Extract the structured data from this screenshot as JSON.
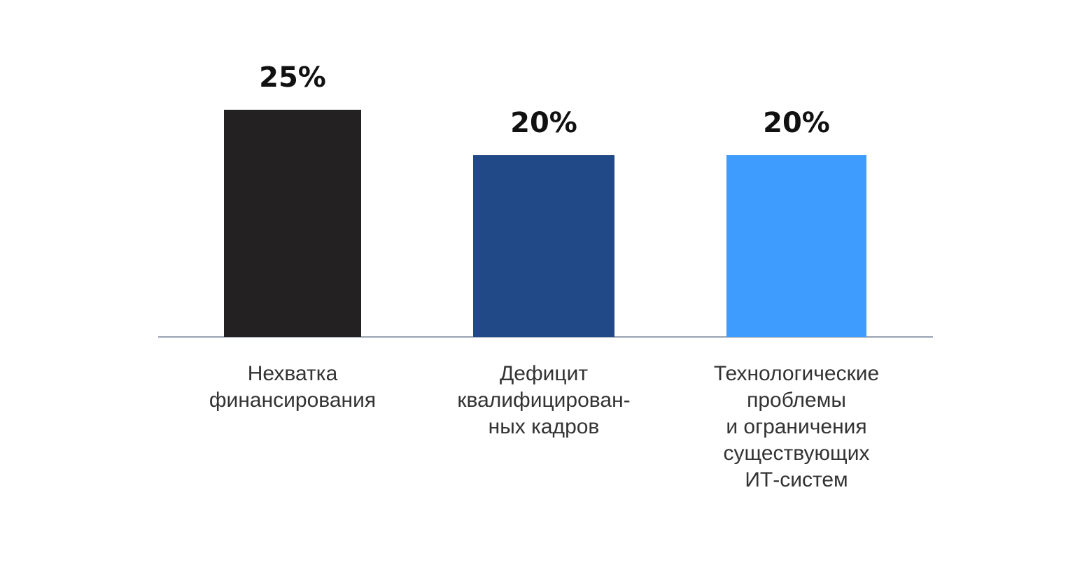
{
  "chart_data": {
    "type": "bar",
    "categories": [
      [
        "Нехватка",
        "финансирования"
      ],
      [
        "Дефицит",
        "квалифицирован-",
        "ных кадров"
      ],
      [
        "Технологические",
        "проблемы",
        "и ограничения",
        "существующих",
        "ИТ-систем"
      ]
    ],
    "values": [
      25,
      20,
      20
    ],
    "value_labels": [
      "25%",
      "20%",
      "20%"
    ],
    "colors": [
      "#242122",
      "#214887",
      "#3e9cff"
    ],
    "axis_color": "#9aa3b2",
    "grid": false,
    "legend": "none",
    "ylim": [
      0,
      25
    ]
  }
}
